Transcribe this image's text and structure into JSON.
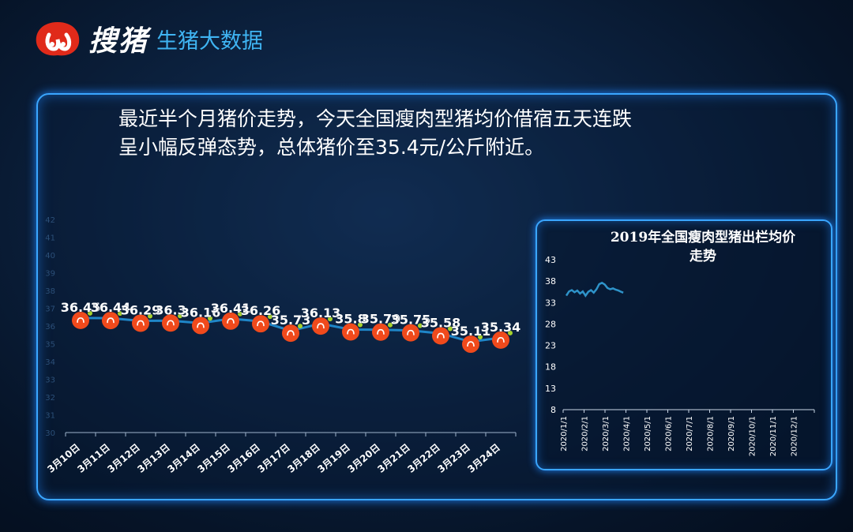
{
  "brand": {
    "name": "搜猪",
    "tagline": "生猪大数据"
  },
  "headline": {
    "line1": "最近半个月猪价走势，今天全国瘦肉型猪均价借宿五天连跌",
    "line2": "呈小幅反弹态势，总体猪价至35.4元/公斤附近。"
  },
  "colors": {
    "accent": "#3aa6ff",
    "line": "#1f86c8",
    "marker": "#f04a1c",
    "marker_dot": "#a6d32c"
  },
  "chart_data": [
    {
      "type": "line",
      "categories": [
        "3月10日",
        "3月11日",
        "3月12日",
        "3月13日",
        "3月14日",
        "3月15日",
        "3月16日",
        "3月17日",
        "3月18日",
        "3月19日",
        "3月20日",
        "3月21日",
        "3月22日",
        "3月23日",
        "3月24日"
      ],
      "values": [
        36.45,
        36.44,
        36.29,
        36.3,
        36.16,
        36.41,
        36.26,
        35.73,
        36.13,
        35.8,
        35.79,
        35.75,
        35.58,
        35.11,
        35.34
      ],
      "data_labels": [
        "36.45",
        "36.44",
        "36.29",
        "36.3",
        "36.16",
        "36.41",
        "36.26",
        "35.73",
        "36.13",
        "35.8",
        "35.79",
        "35.75",
        "35.58",
        "35.11",
        "35.34"
      ],
      "y_ticks": [
        "30",
        "31",
        "32",
        "33",
        "34",
        "35",
        "36",
        "37",
        "38",
        "39",
        "40",
        "41",
        "42"
      ],
      "ylim": [
        30,
        42
      ]
    },
    {
      "type": "line",
      "title": "2019年全国瘦肉型猪出栏均价走势",
      "title_line1": "2019年全国瘦肉型猪出栏均价",
      "title_line2": "走势",
      "x_ticks": [
        "2020/1/1",
        "2020/2/1",
        "2020/3/1",
        "2020/4/1",
        "2020/5/1",
        "2020/6/1",
        "2020/7/1",
        "2020/8/1",
        "2020/9/1",
        "2020/10/1",
        "2020/11/1",
        "2020/12/1"
      ],
      "y_ticks": [
        "8",
        "13",
        "18",
        "23",
        "28",
        "33",
        "38",
        "43"
      ],
      "ylim": [
        8,
        43
      ],
      "x": [
        "2020/1/1",
        "2020/1/5",
        "2020/1/9",
        "2020/1/13",
        "2020/1/17",
        "2020/1/21",
        "2020/1/25",
        "2020/1/29",
        "2020/2/2",
        "2020/2/6",
        "2020/2/10",
        "2020/2/14",
        "2020/2/18",
        "2020/2/22",
        "2020/2/26",
        "2020/3/1",
        "2020/3/5",
        "2020/3/9",
        "2020/3/13",
        "2020/3/17",
        "2020/3/21",
        "2020/3/24"
      ],
      "y": [
        34.6,
        35.6,
        35.9,
        35.4,
        35.8,
        35.1,
        35.6,
        34.6,
        35.5,
        35.9,
        35.3,
        36.1,
        37.3,
        37.6,
        37.2,
        36.4,
        36.1,
        36.3,
        36.0,
        35.8,
        35.5,
        35.3
      ]
    }
  ]
}
